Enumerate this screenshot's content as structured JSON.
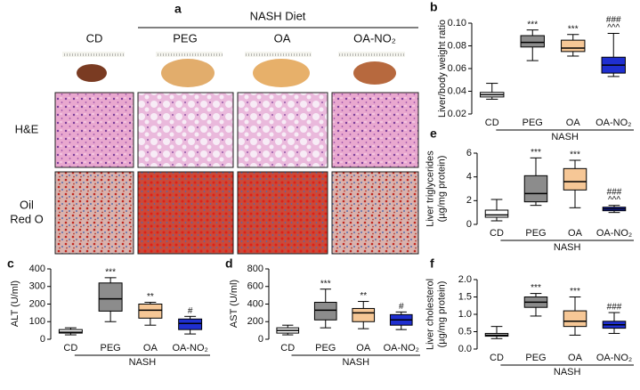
{
  "panel_a": {
    "label": "a",
    "diet": "NASH Diet",
    "groups": [
      "CD",
      "PEG",
      "OA",
      "OA-NO₂"
    ],
    "rows": [
      [
        "H&E"
      ],
      [
        "Oil",
        "Red O"
      ]
    ]
  },
  "chart_data": [
    {
      "type": "box",
      "label": "b",
      "ylabel": [
        "Liver/body weight ratio"
      ],
      "categories": [
        "CD",
        "PEG",
        "OA",
        "OA-NO₂"
      ],
      "group": "NASH",
      "colors": [
        "#ffffff",
        "#8c8c8c",
        "#f6c796",
        "#1f2fd0"
      ],
      "ylim": [
        0.02,
        0.1
      ],
      "yticks": [
        0.02,
        0.04,
        0.06,
        0.08,
        {
          "value": 0.1,
          "label": "0.10"
        }
      ],
      "boxes": [
        {
          "min": 0.033,
          "q1": 0.035,
          "median": 0.037,
          "q3": 0.039,
          "max": 0.047
        },
        {
          "min": 0.067,
          "q1": 0.079,
          "median": 0.083,
          "q3": 0.089,
          "max": 0.094
        },
        {
          "min": 0.071,
          "q1": 0.075,
          "median": 0.078,
          "q3": 0.085,
          "max": 0.09
        },
        {
          "min": 0.053,
          "q1": 0.056,
          "median": 0.063,
          "q3": 0.07,
          "max": 0.091
        }
      ],
      "annotations": [
        [],
        [
          "***"
        ],
        [
          "***"
        ],
        [
          "###",
          "^^^"
        ]
      ]
    },
    {
      "type": "box",
      "label": "c",
      "ylabel": [
        "ALT (U/ml)"
      ],
      "categories": [
        "CD",
        "PEG",
        "OA",
        "OA-NO₂"
      ],
      "group": "NASH",
      "colors": [
        "#ffffff",
        "#8c8c8c",
        "#f6c796",
        "#1f2fd0"
      ],
      "ylim": [
        0,
        400
      ],
      "yticks": [
        0,
        100,
        200,
        300,
        400
      ],
      "boxes": [
        {
          "min": 25,
          "q1": 35,
          "median": 40,
          "q3": 55,
          "max": 65
        },
        {
          "min": 100,
          "q1": 160,
          "median": 230,
          "q3": 320,
          "max": 350
        },
        {
          "min": 80,
          "q1": 120,
          "median": 165,
          "q3": 200,
          "max": 210
        },
        {
          "min": 30,
          "q1": 55,
          "median": 90,
          "q3": 115,
          "max": 130
        }
      ],
      "annotations": [
        [],
        [
          "***"
        ],
        [
          "**"
        ],
        [
          "#"
        ]
      ]
    },
    {
      "type": "box",
      "label": "d",
      "ylabel": [
        "AST (U/ml)"
      ],
      "categories": [
        "CD",
        "PEG",
        "OA",
        "OA-NO₂"
      ],
      "group": "NASH",
      "colors": [
        "#ffffff",
        "#8c8c8c",
        "#f6c796",
        "#1f2fd0"
      ],
      "ylim": [
        0,
        800
      ],
      "yticks": [
        0,
        200,
        400,
        600,
        800
      ],
      "boxes": [
        {
          "min": 50,
          "q1": 70,
          "median": 100,
          "q3": 130,
          "max": 160
        },
        {
          "min": 130,
          "q1": 220,
          "median": 330,
          "q3": 420,
          "max": 570
        },
        {
          "min": 120,
          "q1": 200,
          "median": 300,
          "q3": 350,
          "max": 430
        },
        {
          "min": 110,
          "q1": 160,
          "median": 220,
          "q3": 280,
          "max": 310
        }
      ],
      "annotations": [
        [],
        [
          "***"
        ],
        [
          "**"
        ],
        [
          "#"
        ]
      ]
    },
    {
      "type": "box",
      "label": "e",
      "ylabel": [
        "Liver triglycerides",
        "(µg/mg protein)"
      ],
      "categories": [
        "CD",
        "PEG",
        "OA",
        "OA-NO₂"
      ],
      "group": "NASH",
      "colors": [
        "#ffffff",
        "#8c8c8c",
        "#f6c796",
        "#1f2fd0"
      ],
      "ylim": [
        0,
        6
      ],
      "yticks": [
        0,
        2,
        4,
        6
      ],
      "boxes": [
        {
          "min": 0.3,
          "q1": 0.6,
          "median": 0.8,
          "q3": 1.2,
          "max": 2.1
        },
        {
          "min": 1.6,
          "q1": 1.9,
          "median": 2.6,
          "q3": 4.1,
          "max": 5.6
        },
        {
          "min": 1.4,
          "q1": 2.9,
          "median": 3.6,
          "q3": 4.7,
          "max": 5.4
        },
        {
          "min": 1.0,
          "q1": 1.15,
          "median": 1.3,
          "q3": 1.45,
          "max": 1.6
        }
      ],
      "annotations": [
        [],
        [
          "***"
        ],
        [
          "***"
        ],
        [
          "###",
          "^^^"
        ]
      ]
    },
    {
      "type": "box",
      "label": "f",
      "ylabel": [
        "Liver cholesterol",
        "(µg/mg protein)"
      ],
      "categories": [
        "CD",
        "PEG",
        "OA",
        "OA-NO₂"
      ],
      "group": "NASH",
      "colors": [
        "#ffffff",
        "#8c8c8c",
        "#f6c796",
        "#1f2fd0"
      ],
      "ylim": [
        0,
        2
      ],
      "yticks": [
        {
          "value": 0,
          "label": "0.0"
        },
        0.5,
        {
          "value": 1,
          "label": "1.0"
        },
        1.5,
        {
          "value": 2,
          "label": "2.0"
        }
      ],
      "boxes": [
        {
          "min": 0.3,
          "q1": 0.37,
          "median": 0.4,
          "q3": 0.45,
          "max": 0.65
        },
        {
          "min": 0.95,
          "q1": 1.2,
          "median": 1.35,
          "q3": 1.5,
          "max": 1.6
        },
        {
          "min": 0.4,
          "q1": 0.65,
          "median": 0.8,
          "q3": 1.1,
          "max": 1.5
        },
        {
          "min": 0.45,
          "q1": 0.6,
          "median": 0.7,
          "q3": 0.8,
          "max": 1.05
        }
      ],
      "annotations": [
        [],
        [
          "***"
        ],
        [
          "***"
        ],
        [
          "###"
        ]
      ]
    }
  ]
}
